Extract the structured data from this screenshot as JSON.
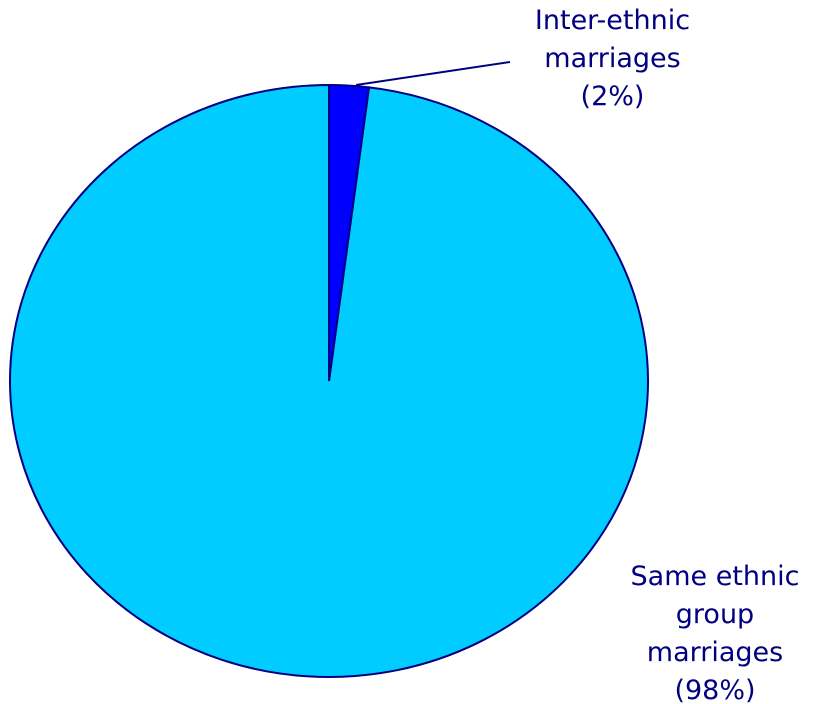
{
  "chart_data": {
    "type": "pie",
    "categories": [
      "Inter-ethnic marriages",
      "Same ethnic group marriages"
    ],
    "values": [
      2,
      98
    ],
    "value_labels": [
      "(2%)",
      "(98%)"
    ],
    "colors": [
      "#0000ff",
      "#00ccff"
    ]
  }
}
